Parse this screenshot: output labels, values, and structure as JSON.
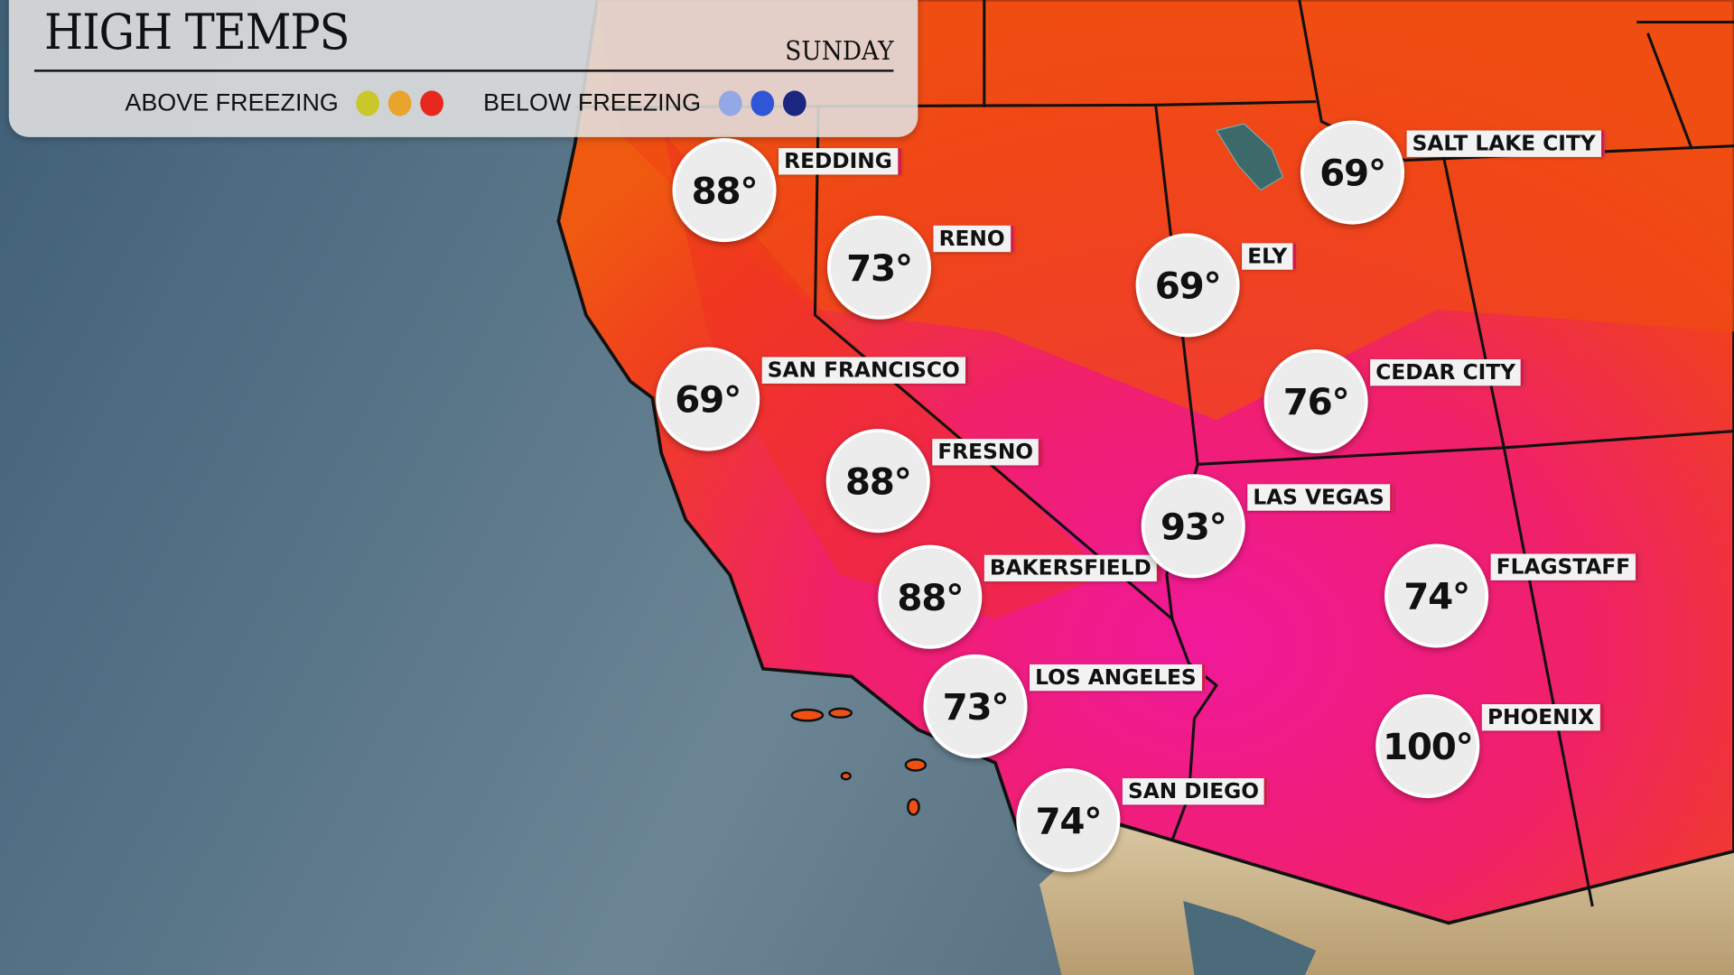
{
  "header": {
    "title": "HIGH TEMPS",
    "day": "SUNDAY"
  },
  "legend": {
    "above_label": "ABOVE FREEZING",
    "above_colors": [
      "#c9c72a",
      "#e8a42c",
      "#e8281e"
    ],
    "below_label": "BELOW FREEZING",
    "below_colors": [
      "#94a8e6",
      "#2f56d6",
      "#1a2680"
    ]
  },
  "cities": [
    {
      "name": "REDDING",
      "temp": "88°"
    },
    {
      "name": "RENO",
      "temp": "73°"
    },
    {
      "name": "SAN FRANCISCO",
      "temp": "69°"
    },
    {
      "name": "FRESNO",
      "temp": "88°"
    },
    {
      "name": "BAKERSFIELD",
      "temp": "88°"
    },
    {
      "name": "LOS ANGELES",
      "temp": "73°"
    },
    {
      "name": "SAN DIEGO",
      "temp": "74°"
    },
    {
      "name": "ELY",
      "temp": "69°"
    },
    {
      "name": "SALT LAKE CITY",
      "temp": "69°"
    },
    {
      "name": "CEDAR CITY",
      "temp": "76°"
    },
    {
      "name": "LAS VEGAS",
      "temp": "93°"
    },
    {
      "name": "FLAGSTAFF",
      "temp": "74°"
    },
    {
      "name": "PHOENIX",
      "temp": "100°"
    }
  ]
}
